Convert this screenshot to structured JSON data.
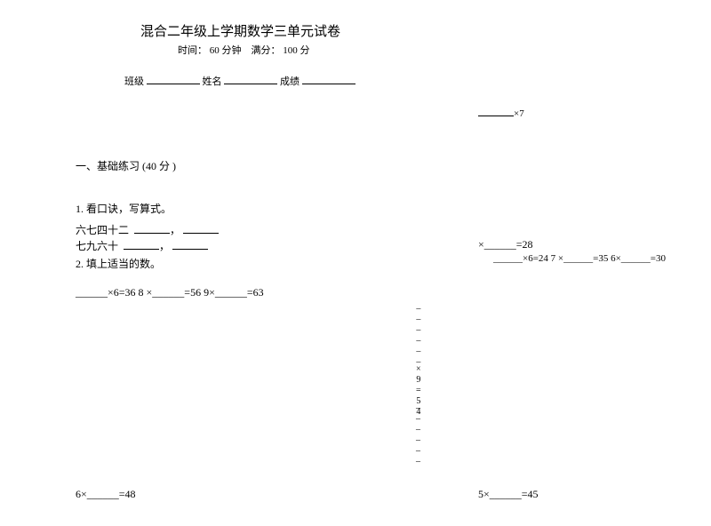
{
  "title": "混合二年级上学期数学三单元试卷",
  "subtitle_time_label": "时间：",
  "subtitle_time_value": "60 分钟",
  "subtitle_score_label": "满分：",
  "subtitle_score_value": "100 分",
  "info": {
    "class_label": "班级",
    "name_label": "姓名",
    "score_label": "成绩"
  },
  "x7_tail": "×7",
  "section1": "一、基础练习  (40 分 )",
  "q1": {
    "title": "1.   看口诀，写算式。",
    "line1a": "六七四十二",
    "comma": "，",
    "line2a": "七九六十"
  },
  "right_block": {
    "eq1": "×______=28",
    "eq1b": "______×6=24 7 ×______=35 6×______=30"
  },
  "q2": {
    "title": "2.   填上适当的数。",
    "line1": "______×6=36 8 ×______=56 9×______=63"
  },
  "vertical1": {
    "l1": "_",
    "l2": "_",
    "l3": "_",
    "l4": "_",
    "l5": "_",
    "l6": "_",
    "l7": "×",
    "l8": "9",
    "l9": "=",
    "l10": "5",
    "l11": "4"
  },
  "vertical2": {
    "l1": "_",
    "l2": "_",
    "l3": "_",
    "l4": "_",
    "l5": "_",
    "l6": "_"
  },
  "bottom_left": "6×______=48",
  "bottom_right": "5×______=45",
  "colors": {
    "text": "#000000",
    "background": "#ffffff"
  },
  "typography": {
    "body_font": "SimSun",
    "title_fontsize": 15,
    "body_fontsize": 12,
    "small_fontsize": 11
  }
}
